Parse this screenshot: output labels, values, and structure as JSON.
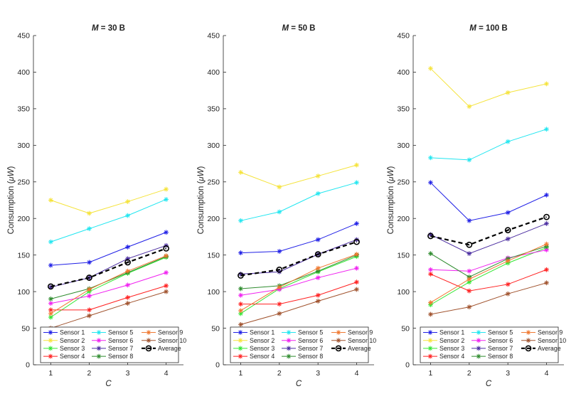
{
  "chart_data": [
    {
      "type": "line",
      "title_prefix": "M",
      "title_suffix": " = 30 B",
      "xlabel": "C",
      "ylabel_prefix": "Consumption (",
      "ylabel_unit": "μW",
      "ylabel_suffix": ")",
      "x": [
        1,
        2,
        3,
        4
      ],
      "xticks": [
        "1",
        "2",
        "3",
        "4"
      ],
      "ylim": [
        0,
        450
      ],
      "yticks": [
        "0",
        "50",
        "100",
        "150",
        "200",
        "250",
        "300",
        "350",
        "400",
        "450"
      ],
      "legend_position": "bottom",
      "series": [
        {
          "name": "Sensor 1",
          "values": [
            136,
            140,
            161,
            181
          ],
          "color": "#1f1fe6",
          "marker": "asterisk"
        },
        {
          "name": "Sensor 2",
          "values": [
            225,
            207,
            223,
            240
          ],
          "color": "#f5e33a",
          "marker": "asterisk"
        },
        {
          "name": "Sensor 3",
          "values": [
            65,
            100,
            125,
            147
          ],
          "color": "#33e633",
          "marker": "asterisk"
        },
        {
          "name": "Sensor 4",
          "values": [
            75,
            75,
            92,
            108
          ],
          "color": "#ff2020",
          "marker": "asterisk"
        },
        {
          "name": "Sensor 5",
          "values": [
            168,
            186,
            204,
            226
          ],
          "color": "#20e6f0",
          "marker": "asterisk"
        },
        {
          "name": "Sensor 6",
          "values": [
            84,
            94,
            109,
            126
          ],
          "color": "#f020f0",
          "marker": "asterisk"
        },
        {
          "name": "Sensor 7",
          "values": [
            106,
            119,
            145,
            163
          ],
          "color": "#4a2ca0",
          "marker": "asterisk"
        },
        {
          "name": "Sensor 8",
          "values": [
            90,
            104,
            126,
            148
          ],
          "color": "#2e8b2e",
          "marker": "asterisk"
        },
        {
          "name": "Sensor 9",
          "values": [
            70,
            103,
            128,
            149
          ],
          "color": "#f07830",
          "marker": "asterisk"
        },
        {
          "name": "Sensor 10",
          "values": [
            50,
            67,
            84,
            100
          ],
          "color": "#a0522d",
          "marker": "asterisk"
        },
        {
          "name": "Average",
          "values": [
            107,
            119,
            140,
            159
          ],
          "color": "#000000",
          "marker": "circle",
          "dashed": true
        }
      ]
    },
    {
      "type": "line",
      "title_prefix": "M",
      "title_suffix": " = 50 B",
      "xlabel": "C",
      "ylabel_prefix": "Consumption (",
      "ylabel_unit": "μW",
      "ylabel_suffix": ")",
      "x": [
        1,
        2,
        3,
        4
      ],
      "xticks": [
        "1",
        "2",
        "3",
        "4"
      ],
      "ylim": [
        0,
        450
      ],
      "yticks": [
        "0",
        "50",
        "100",
        "150",
        "200",
        "250",
        "300",
        "350",
        "400",
        "450"
      ],
      "legend_position": "bottom",
      "series": [
        {
          "name": "Sensor 1",
          "values": [
            153,
            155,
            171,
            193
          ],
          "color": "#1f1fe6",
          "marker": "asterisk"
        },
        {
          "name": "Sensor 2",
          "values": [
            263,
            243,
            258,
            273
          ],
          "color": "#f5e33a",
          "marker": "asterisk"
        },
        {
          "name": "Sensor 3",
          "values": [
            70,
            104,
            127,
            148
          ],
          "color": "#33e633",
          "marker": "asterisk"
        },
        {
          "name": "Sensor 4",
          "values": [
            83,
            83,
            95,
            113
          ],
          "color": "#ff2020",
          "marker": "asterisk"
        },
        {
          "name": "Sensor 5",
          "values": [
            197,
            209,
            234,
            249
          ],
          "color": "#20e6f0",
          "marker": "asterisk"
        },
        {
          "name": "Sensor 6",
          "values": [
            95,
            103,
            119,
            132
          ],
          "color": "#f020f0",
          "marker": "asterisk"
        },
        {
          "name": "Sensor 7",
          "values": [
            124,
            127,
            151,
            171
          ],
          "color": "#4a2ca0",
          "marker": "asterisk"
        },
        {
          "name": "Sensor 8",
          "values": [
            104,
            108,
            128,
            150
          ],
          "color": "#2e8b2e",
          "marker": "asterisk"
        },
        {
          "name": "Sensor 9",
          "values": [
            74,
            106,
            132,
            151
          ],
          "color": "#f07830",
          "marker": "asterisk"
        },
        {
          "name": "Sensor 10",
          "values": [
            55,
            70,
            87,
            103
          ],
          "color": "#a0522d",
          "marker": "asterisk"
        },
        {
          "name": "Average",
          "values": [
            122,
            130,
            151,
            168
          ],
          "color": "#000000",
          "marker": "circle",
          "dashed": true
        }
      ]
    },
    {
      "type": "line",
      "title_prefix": "M",
      "title_suffix": " = 100 B",
      "xlabel": "C",
      "ylabel_prefix": "Consumption (",
      "ylabel_unit": "μW",
      "ylabel_suffix": ")",
      "x": [
        1,
        2,
        3,
        4
      ],
      "xticks": [
        "1",
        "2",
        "3",
        "4"
      ],
      "ylim": [
        0,
        450
      ],
      "yticks": [
        "0",
        "50",
        "100",
        "150",
        "200",
        "250",
        "300",
        "350",
        "400",
        "450"
      ],
      "legend_position": "bottom",
      "series": [
        {
          "name": "Sensor 1",
          "values": [
            249,
            197,
            208,
            232
          ],
          "color": "#1f1fe6",
          "marker": "asterisk"
        },
        {
          "name": "Sensor 2",
          "values": [
            405,
            353,
            372,
            384
          ],
          "color": "#f5e33a",
          "marker": "asterisk"
        },
        {
          "name": "Sensor 3",
          "values": [
            82,
            113,
            139,
            160
          ],
          "color": "#33e633",
          "marker": "asterisk"
        },
        {
          "name": "Sensor 4",
          "values": [
            124,
            101,
            110,
            130
          ],
          "color": "#ff2020",
          "marker": "asterisk"
        },
        {
          "name": "Sensor 5",
          "values": [
            283,
            280,
            305,
            322
          ],
          "color": "#20e6f0",
          "marker": "asterisk"
        },
        {
          "name": "Sensor 6",
          "values": [
            130,
            128,
            146,
            157
          ],
          "color": "#f020f0",
          "marker": "asterisk"
        },
        {
          "name": "Sensor 7",
          "values": [
            178,
            152,
            172,
            193
          ],
          "color": "#4a2ca0",
          "marker": "asterisk"
        },
        {
          "name": "Sensor 8",
          "values": [
            152,
            120,
            145,
            162
          ],
          "color": "#2e8b2e",
          "marker": "asterisk"
        },
        {
          "name": "Sensor 9",
          "values": [
            85,
            117,
            142,
            165
          ],
          "color": "#f07830",
          "marker": "asterisk"
        },
        {
          "name": "Sensor 10",
          "values": [
            69,
            79,
            97,
            112
          ],
          "color": "#a0522d",
          "marker": "asterisk"
        },
        {
          "name": "Average",
          "values": [
            176,
            164,
            184,
            202
          ],
          "color": "#000000",
          "marker": "circle",
          "dashed": true
        }
      ]
    }
  ]
}
